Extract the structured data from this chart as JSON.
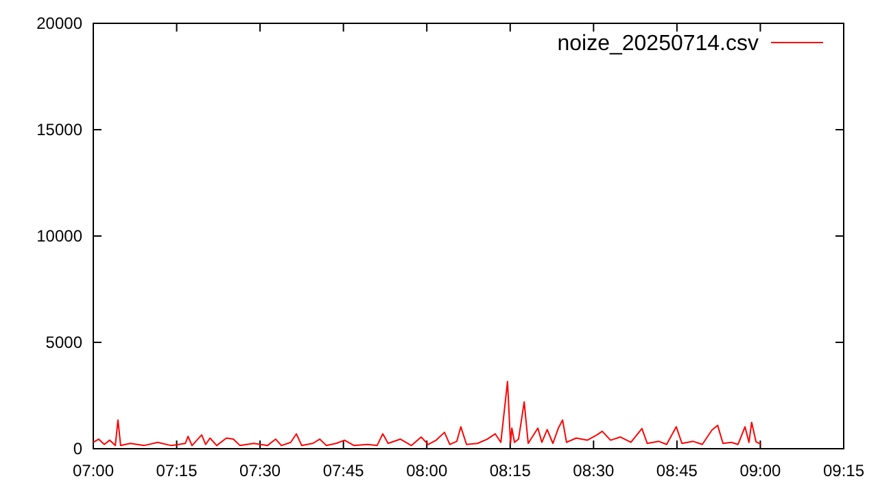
{
  "chart_data": {
    "type": "line",
    "legend": "top right",
    "grid": false,
    "line_style": "solid",
    "marker": "none",
    "xlim": [
      7,
      9.25
    ],
    "xticks": [
      {
        "value": 7,
        "label": "07:00"
      },
      {
        "value": 7.25,
        "label": "07:15"
      },
      {
        "value": 7.5,
        "label": "07:30"
      },
      {
        "value": 7.75,
        "label": "07:45"
      },
      {
        "value": 8,
        "label": "08:00"
      },
      {
        "value": 8.25,
        "label": "08:15"
      },
      {
        "value": 8.5,
        "label": "08:30"
      },
      {
        "value": 8.75,
        "label": "08:45"
      },
      {
        "value": 9,
        "label": "09:00"
      },
      {
        "value": 9.25,
        "label": "09:15"
      }
    ],
    "ylim": [
      0,
      20000
    ],
    "yticks": [
      0,
      5000,
      10000,
      15000,
      20000
    ],
    "series": [
      {
        "name": "noize_20250714.csv",
        "color": "#ff0000",
        "x": [
          7.0,
          7.016,
          7.033,
          7.049,
          7.066,
          7.074,
          7.082,
          7.111,
          7.152,
          7.193,
          7.234,
          7.276,
          7.284,
          7.296,
          7.325,
          7.337,
          7.35,
          7.37,
          7.399,
          7.42,
          7.44,
          7.481,
          7.522,
          7.547,
          7.564,
          7.592,
          7.609,
          7.625,
          7.658,
          7.679,
          7.699,
          7.728,
          7.753,
          7.782,
          7.823,
          7.851,
          7.868,
          7.884,
          7.921,
          7.954,
          7.983,
          8.004,
          8.028,
          8.053,
          8.069,
          8.09,
          8.102,
          8.119,
          8.152,
          8.181,
          8.205,
          8.222,
          8.242,
          8.251,
          8.255,
          8.263,
          8.275,
          8.292,
          8.304,
          8.333,
          8.345,
          8.361,
          8.378,
          8.394,
          8.407,
          8.419,
          8.448,
          8.481,
          8.51,
          8.526,
          8.551,
          8.58,
          8.612,
          8.645,
          8.661,
          8.695,
          8.719,
          8.748,
          8.765,
          8.798,
          8.826,
          8.855,
          8.872,
          8.888,
          8.913,
          8.933,
          8.954,
          8.966,
          8.974,
          8.987,
          9.003
        ],
        "values": [
          300,
          450,
          200,
          400,
          150,
          1350,
          150,
          250,
          150,
          300,
          150,
          250,
          580,
          150,
          650,
          200,
          500,
          150,
          500,
          450,
          150,
          250,
          150,
          450,
          150,
          300,
          700,
          150,
          250,
          450,
          150,
          250,
          400,
          150,
          200,
          150,
          700,
          250,
          450,
          150,
          550,
          200,
          400,
          770,
          200,
          350,
          1030,
          200,
          250,
          450,
          700,
          300,
          3160,
          250,
          970,
          300,
          450,
          2200,
          250,
          970,
          300,
          900,
          250,
          950,
          1350,
          300,
          500,
          400,
          650,
          820,
          400,
          550,
          300,
          950,
          250,
          350,
          200,
          1030,
          250,
          350,
          200,
          880,
          1100,
          250,
          300,
          200,
          1030,
          300,
          1240,
          330,
          200
        ]
      }
    ]
  }
}
